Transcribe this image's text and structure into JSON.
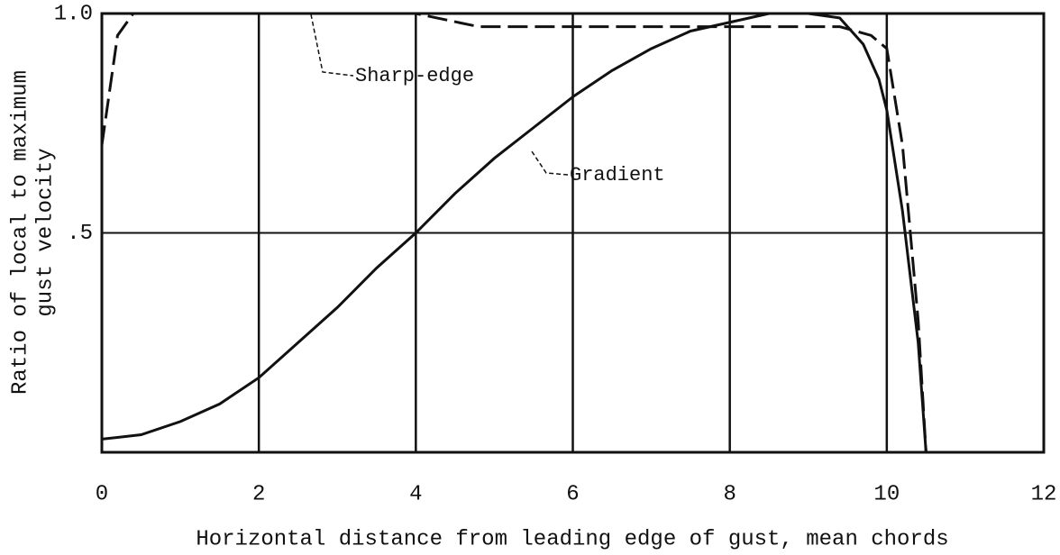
{
  "chart_data": {
    "type": "line",
    "x_label": "Horizontal distance from leading edge of gust, mean chords",
    "y_label": [
      "Ratio of local to maximum",
      "gust velocity"
    ],
    "xlim": [
      0,
      12
    ],
    "ylim": [
      0,
      1
    ],
    "xticks": [
      0,
      2,
      4,
      6,
      8,
      10,
      12
    ],
    "yticks": [
      {
        "value": 0.5,
        "label": ".5"
      },
      {
        "value": 1,
        "label": "1.0"
      }
    ],
    "grid": true,
    "series": [
      {
        "name": "Sharp-edge",
        "color": "#111111",
        "line_style": "dashed",
        "x": [
          0,
          0.2,
          0.4,
          4,
          4.8,
          9.4,
          9.8,
          10,
          10.2,
          10.4,
          10.5
        ],
        "values": [
          0.7,
          0.95,
          1,
          1,
          0.97,
          0.97,
          0.95,
          0.92,
          0.7,
          0.3,
          0
        ]
      },
      {
        "name": "Gradient",
        "color": "#111111",
        "line_style": "solid",
        "x": [
          0,
          0.5,
          1,
          1.5,
          2,
          2.5,
          3,
          3.5,
          4,
          4.5,
          5,
          5.5,
          6,
          6.5,
          7,
          7.5,
          8,
          8.5,
          9,
          9.4,
          9.7,
          9.9,
          10,
          10.2,
          10.4,
          10.5
        ],
        "values": [
          0.03,
          0.04,
          0.07,
          0.11,
          0.17,
          0.25,
          0.33,
          0.42,
          0.5,
          0.59,
          0.67,
          0.74,
          0.81,
          0.87,
          0.92,
          0.96,
          0.98,
          1,
          1,
          0.99,
          0.93,
          0.85,
          0.78,
          0.55,
          0.25,
          0
        ]
      }
    ]
  }
}
